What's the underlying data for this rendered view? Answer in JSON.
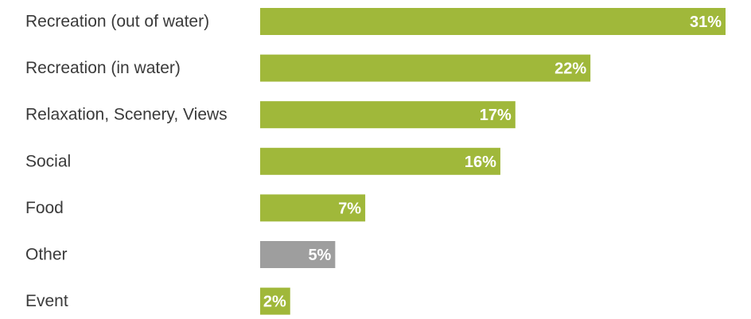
{
  "chart_data": {
    "type": "bar",
    "orientation": "horizontal",
    "title": "",
    "xlabel": "",
    "ylabel": "",
    "categories": [
      "Recreation (out of water)",
      "Recreation (in water)",
      "Relaxation, Scenery, Views",
      "Social",
      "Food",
      "Other",
      "Event"
    ],
    "values": [
      31,
      22,
      17,
      16,
      7,
      5,
      2
    ],
    "value_labels": [
      "31%",
      "22%",
      "17%",
      "16%",
      "7%",
      "5%",
      "2%"
    ],
    "bar_colors": [
      "#a0b83a",
      "#a0b83a",
      "#a0b83a",
      "#a0b83a",
      "#a0b83a",
      "#9e9e9e",
      "#a0b83a"
    ],
    "xlim": [
      0,
      31
    ],
    "grid": false,
    "legend": "none"
  }
}
